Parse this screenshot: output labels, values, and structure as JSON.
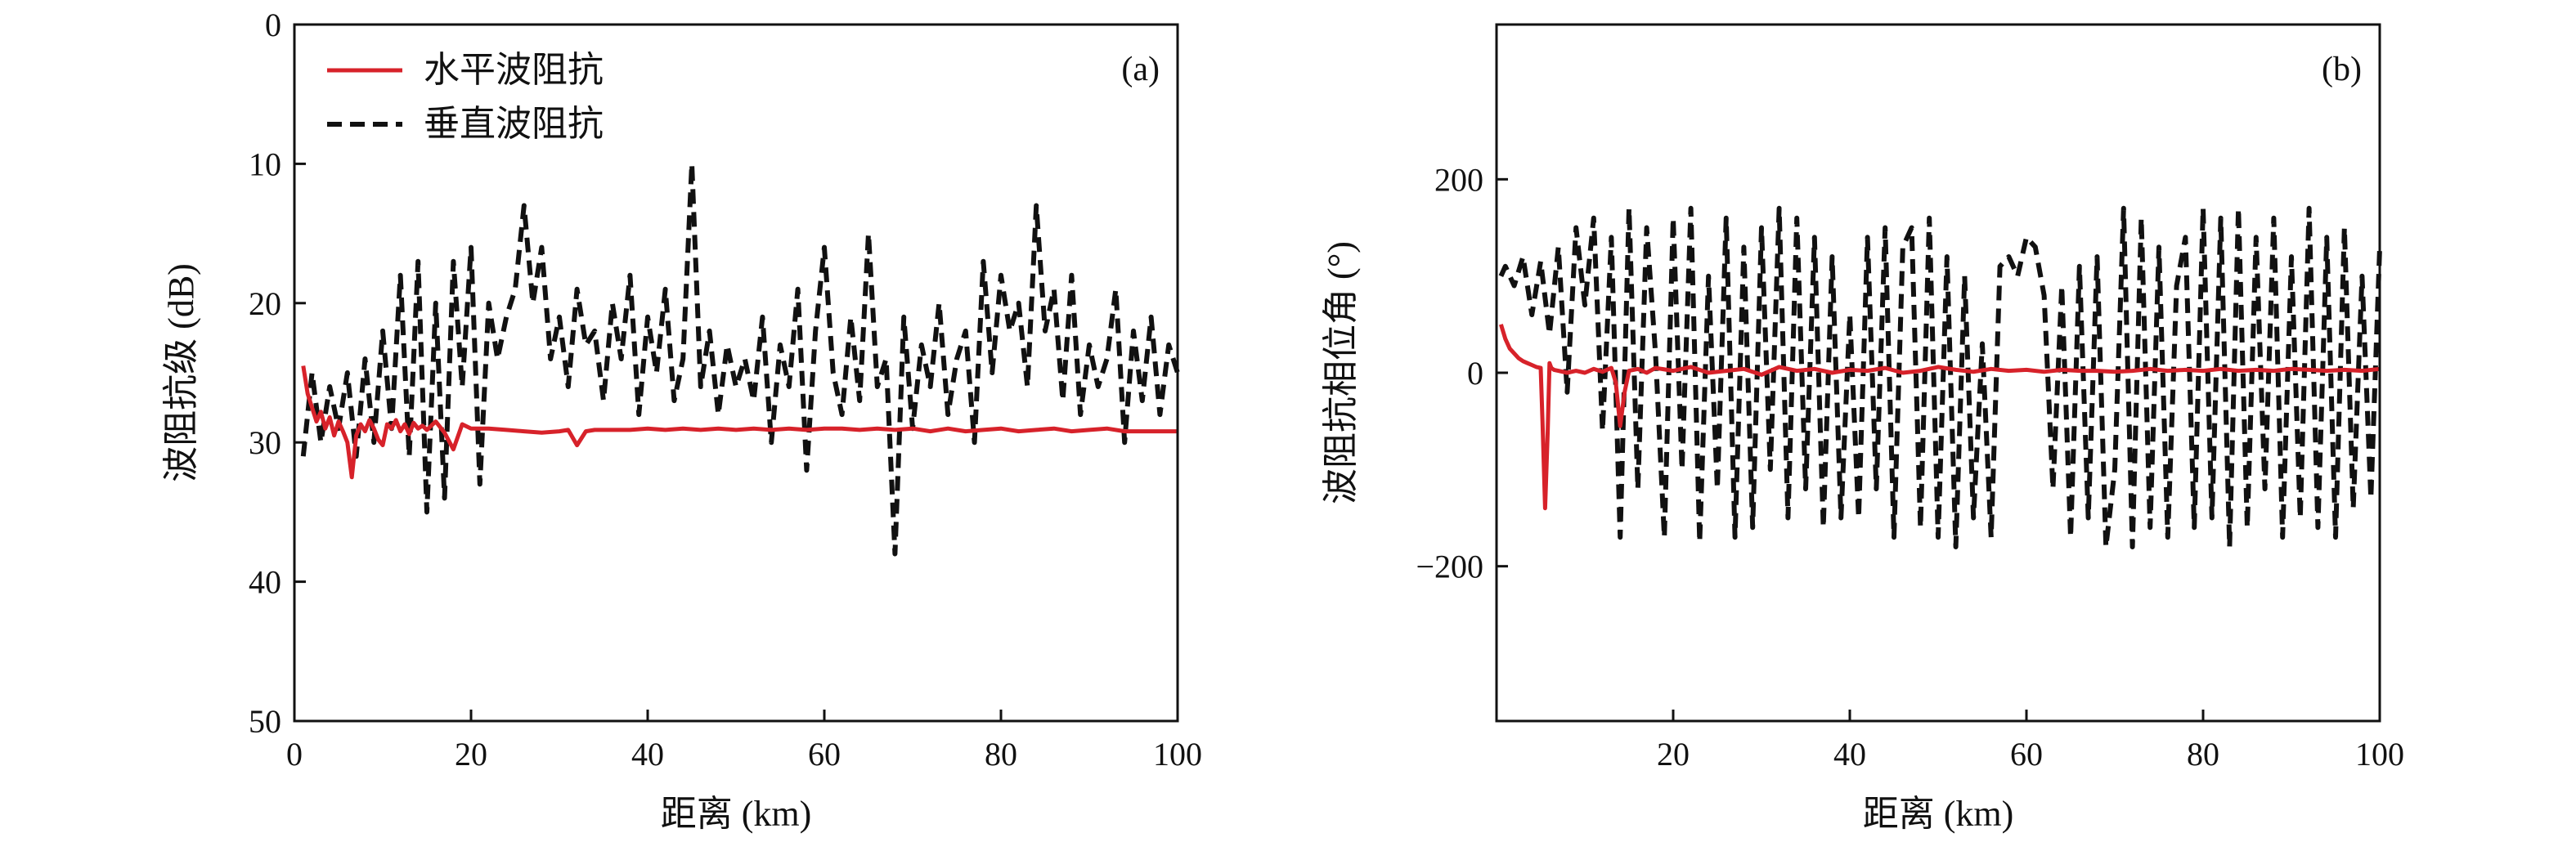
{
  "chart_data": [
    {
      "type": "line",
      "panel_label": "(a)",
      "xlabel": "距离 (km)",
      "ylabel": "波阻抗级 (dB)",
      "xlim": [
        0,
        100
      ],
      "ylim": [
        0,
        50
      ],
      "y_inverted": true,
      "xticks": [
        0,
        20,
        40,
        60,
        80,
        100
      ],
      "yticks": [
        0,
        10,
        20,
        30,
        40,
        50
      ],
      "grid": false,
      "legend": {
        "placement": "top-left"
      },
      "series": [
        {
          "name": "水平波阻抗",
          "color": "#d7222a",
          "style": "solid",
          "x": [
            1,
            1.5,
            2,
            2.5,
            3,
            3.5,
            4,
            4.5,
            5,
            5.5,
            6,
            6.5,
            7,
            7.5,
            8,
            8.5,
            9,
            9.5,
            10,
            10.5,
            11,
            11.5,
            12,
            12.5,
            13,
            13.5,
            14,
            14.5,
            15,
            16,
            17,
            18,
            19,
            20,
            22,
            24,
            26,
            28,
            30,
            31,
            32,
            33,
            34,
            36,
            38,
            40,
            42,
            44,
            46,
            48,
            50,
            52,
            54,
            56,
            58,
            60,
            62,
            64,
            66,
            68,
            70,
            72,
            74,
            76,
            78,
            80,
            82,
            84,
            86,
            88,
            90,
            92,
            94,
            96,
            98,
            100
          ],
          "y": [
            24.5,
            26.5,
            27.5,
            28.5,
            27.8,
            29,
            28.2,
            29.5,
            28.5,
            29.2,
            30,
            32.5,
            29.5,
            28.7,
            29.2,
            28.4,
            29,
            29.8,
            30.2,
            28.7,
            29,
            28.4,
            29.2,
            28.7,
            29.4,
            28.6,
            29,
            28.8,
            29.1,
            28.5,
            29.3,
            30.5,
            28.7,
            29,
            29,
            29.1,
            29.2,
            29.3,
            29.2,
            29.1,
            30.2,
            29.2,
            29.1,
            29.1,
            29.1,
            29,
            29.1,
            29,
            29.1,
            29,
            29.1,
            29,
            29.1,
            29,
            29.1,
            29,
            29,
            29.1,
            29,
            29.1,
            29,
            29.2,
            29,
            29.2,
            29.1,
            29,
            29.2,
            29.1,
            29,
            29.2,
            29.1,
            29,
            29.2,
            29.2,
            29.2,
            29.2
          ]
        },
        {
          "name": "垂直波阻抗",
          "color": "#111111",
          "style": "dashed",
          "x": [
            1,
            2,
            3,
            4,
            5,
            6,
            7,
            8,
            9,
            10,
            11,
            12,
            13,
            14,
            15,
            16,
            17,
            18,
            19,
            20,
            21,
            22,
            23,
            24,
            25,
            26,
            27,
            28,
            29,
            30,
            31,
            32,
            33,
            34,
            35,
            36,
            37,
            38,
            39,
            40,
            41,
            42,
            43,
            44,
            45,
            46,
            47,
            48,
            49,
            50,
            51,
            52,
            53,
            54,
            55,
            56,
            57,
            58,
            59,
            60,
            61,
            62,
            63,
            64,
            65,
            66,
            67,
            68,
            69,
            70,
            71,
            72,
            73,
            74,
            75,
            76,
            77,
            78,
            79,
            80,
            81,
            82,
            83,
            84,
            85,
            86,
            87,
            88,
            89,
            90,
            91,
            92,
            93,
            94,
            95,
            96,
            97,
            98,
            99,
            100
          ],
          "y": [
            31,
            25,
            30,
            26,
            29,
            25,
            31,
            24,
            30,
            22,
            29,
            18,
            31,
            17,
            35,
            20,
            34,
            17,
            26,
            16,
            33,
            20,
            24,
            21,
            19,
            13,
            20,
            16,
            24,
            21,
            26,
            19,
            23,
            22,
            27,
            20,
            24,
            18,
            28,
            21,
            25,
            19,
            27,
            24,
            10,
            26,
            22,
            28,
            23,
            26,
            24,
            27,
            21,
            30,
            23,
            26,
            19,
            32,
            22,
            16,
            25,
            28,
            21,
            27,
            15,
            26,
            24,
            38,
            21,
            29,
            23,
            26,
            20,
            28,
            24,
            22,
            30,
            17,
            25,
            18,
            22,
            20,
            26,
            13,
            22,
            19,
            27,
            18,
            28,
            23,
            26,
            24,
            19,
            30,
            22,
            27,
            21,
            28,
            23,
            25
          ]
        }
      ]
    },
    {
      "type": "line",
      "panel_label": "(b)",
      "xlabel": "距离 (km)",
      "ylabel": "波阻抗相位角 (°)",
      "xlim": [
        0,
        100
      ],
      "ylim": [
        -360,
        360
      ],
      "xticks": [
        20,
        40,
        60,
        80,
        100
      ],
      "yticks": [
        -200,
        0,
        200
      ],
      "grid": false,
      "series": [
        {
          "name": "水平波阻抗",
          "color": "#d7222a",
          "style": "solid",
          "x": [
            0.5,
            1,
            1.5,
            2,
            2.5,
            3,
            3.5,
            4,
            4.5,
            5,
            5.2,
            5.5,
            5.8,
            6,
            6.2,
            6.5,
            7,
            8,
            9,
            10,
            11,
            12,
            13,
            13.5,
            14,
            14.5,
            15,
            16,
            17,
            18,
            20,
            22,
            24,
            26,
            28,
            30,
            32,
            34,
            36,
            38,
            40,
            42,
            44,
            46,
            48,
            50,
            52,
            54,
            56,
            58,
            60,
            62,
            64,
            66,
            68,
            70,
            72,
            74,
            76,
            78,
            80,
            82,
            84,
            86,
            88,
            90,
            92,
            94,
            96,
            98,
            100
          ],
          "y": [
            50,
            35,
            25,
            20,
            15,
            12,
            10,
            8,
            6,
            5,
            -50,
            -140,
            -60,
            10,
            5,
            3,
            2,
            0,
            2,
            0,
            4,
            1,
            5,
            -10,
            -55,
            -20,
            2,
            4,
            0,
            5,
            2,
            6,
            0,
            2,
            4,
            -2,
            6,
            2,
            4,
            0,
            3,
            2,
            5,
            0,
            2,
            6,
            3,
            1,
            4,
            2,
            3,
            1,
            3,
            2,
            2,
            1,
            2,
            4,
            2,
            3,
            2,
            4,
            2,
            3,
            2,
            4,
            3,
            2,
            3,
            2,
            4
          ]
        },
        {
          "name": "垂直波阻抗",
          "color": "#111111",
          "style": "dashed",
          "x": [
            0.5,
            1,
            2,
            3,
            4,
            5,
            6,
            7,
            8,
            9,
            10,
            11,
            12,
            13,
            14,
            15,
            16,
            17,
            18,
            19,
            20,
            21,
            22,
            23,
            24,
            25,
            26,
            27,
            28,
            29,
            30,
            31,
            32,
            33,
            34,
            35,
            36,
            37,
            38,
            39,
            40,
            41,
            42,
            43,
            44,
            45,
            46,
            47,
            48,
            49,
            50,
            51,
            52,
            53,
            54,
            55,
            56,
            57,
            58,
            59,
            60,
            61,
            62,
            63,
            64,
            65,
            66,
            67,
            68,
            69,
            70,
            71,
            72,
            73,
            74,
            75,
            76,
            77,
            78,
            79,
            80,
            81,
            82,
            83,
            84,
            85,
            86,
            87,
            88,
            89,
            90,
            91,
            92,
            93,
            94,
            95,
            96,
            97,
            98,
            99,
            100
          ],
          "y": [
            100,
            110,
            90,
            120,
            60,
            115,
            40,
            130,
            -20,
            150,
            70,
            160,
            -60,
            140,
            -170,
            170,
            -120,
            150,
            20,
            -170,
            160,
            -100,
            170,
            -175,
            100,
            -120,
            160,
            -170,
            130,
            -160,
            150,
            -100,
            170,
            -150,
            160,
            -120,
            140,
            -160,
            120,
            -150,
            60,
            -150,
            140,
            -120,
            150,
            -170,
            130,
            150,
            -160,
            160,
            -170,
            120,
            -180,
            100,
            -150,
            30,
            -170,
            110,
            120,
            100,
            140,
            130,
            80,
            -120,
            90,
            -170,
            110,
            -150,
            120,
            -180,
            -100,
            170,
            -180,
            160,
            -160,
            130,
            -170,
            90,
            140,
            -160,
            170,
            -150,
            160,
            -180,
            170,
            -160,
            140,
            -120,
            160,
            -170,
            120,
            -150,
            170,
            -160,
            140,
            -170,
            150,
            -140,
            100,
            -130,
            130
          ]
        }
      ]
    }
  ]
}
